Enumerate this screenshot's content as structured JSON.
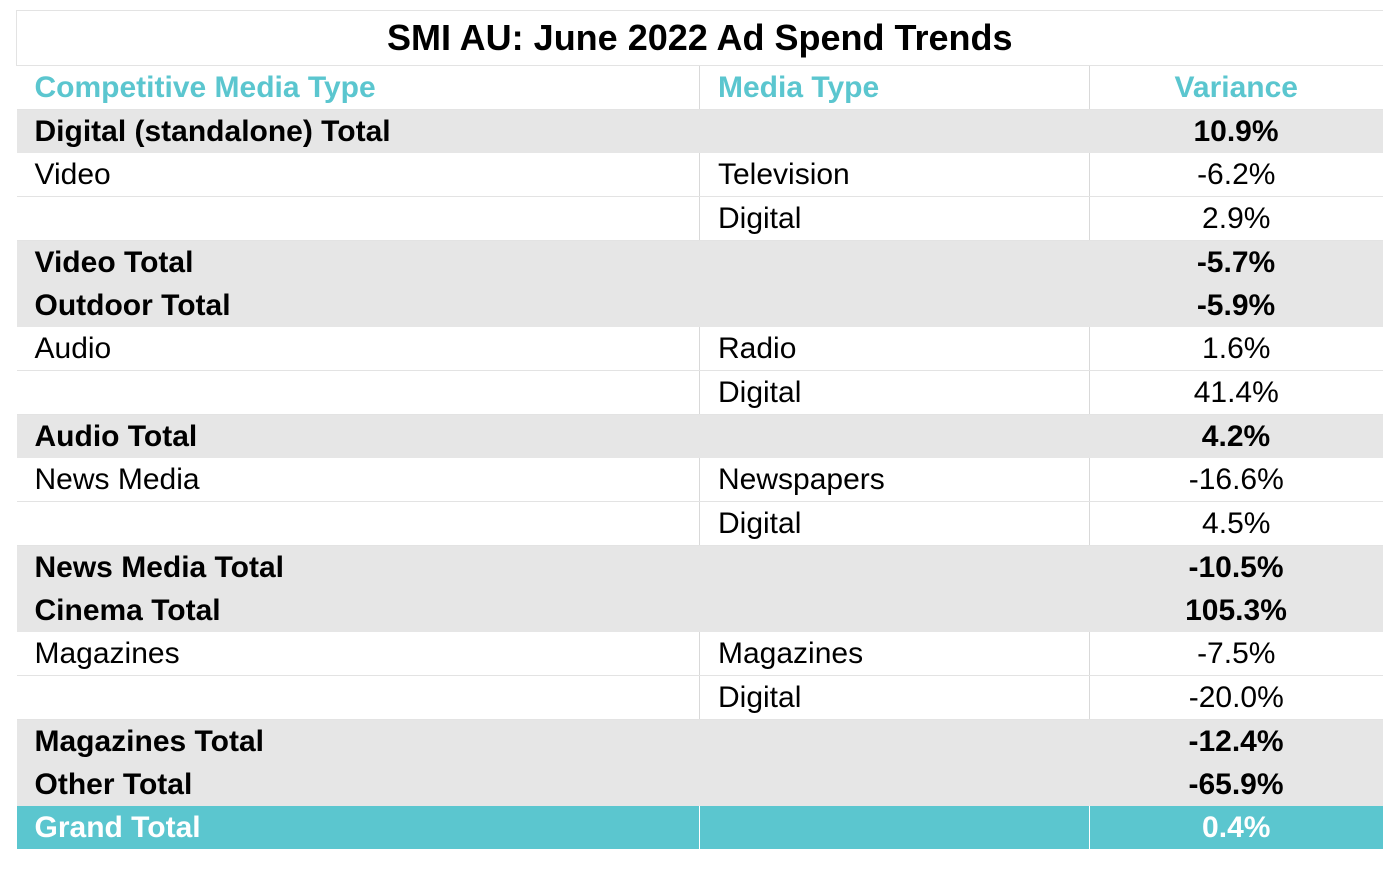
{
  "title": "SMI AU: June 2022 Ad Spend Trends",
  "headers": [
    "Competitive Media Type",
    "Media Type",
    "Variance"
  ],
  "rows": [
    {
      "type": "total",
      "cells": [
        "Digital (standalone) Total",
        "",
        "10.9%"
      ]
    },
    {
      "type": "detail",
      "cells": [
        "Video",
        "Television",
        "-6.2%"
      ]
    },
    {
      "type": "detail",
      "cells": [
        "",
        "Digital",
        "2.9%"
      ]
    },
    {
      "type": "total",
      "cells": [
        "Video Total",
        "",
        "-5.7%"
      ]
    },
    {
      "type": "total",
      "cells": [
        "Outdoor Total",
        "",
        "-5.9%"
      ]
    },
    {
      "type": "detail",
      "cells": [
        "Audio",
        "Radio",
        "1.6%"
      ]
    },
    {
      "type": "detail",
      "cells": [
        "",
        "Digital",
        "41.4%"
      ]
    },
    {
      "type": "total",
      "cells": [
        "Audio Total",
        "",
        "4.2%"
      ]
    },
    {
      "type": "detail",
      "cells": [
        "News Media",
        "Newspapers",
        "-16.6%"
      ]
    },
    {
      "type": "detail",
      "cells": [
        "",
        "Digital",
        "4.5%"
      ]
    },
    {
      "type": "total",
      "cells": [
        "News Media Total",
        "",
        "-10.5%"
      ]
    },
    {
      "type": "total",
      "cells": [
        "Cinema Total",
        "",
        "105.3%"
      ]
    },
    {
      "type": "detail",
      "cells": [
        "Magazines",
        "Magazines",
        "-7.5%"
      ]
    },
    {
      "type": "detail",
      "cells": [
        "",
        "Digital",
        "-20.0%"
      ]
    },
    {
      "type": "total",
      "cells": [
        "Magazines Total",
        "",
        "-12.4%"
      ]
    },
    {
      "type": "total",
      "cells": [
        "Other Total",
        "",
        "-65.9%"
      ]
    },
    {
      "type": "grand",
      "cells": [
        "Grand Total",
        "",
        "0.4%"
      ]
    }
  ],
  "colors": {
    "accent": "#5bc6cf",
    "total_row_bg": "#e6e6e6",
    "grand_text": "#ffffff"
  }
}
